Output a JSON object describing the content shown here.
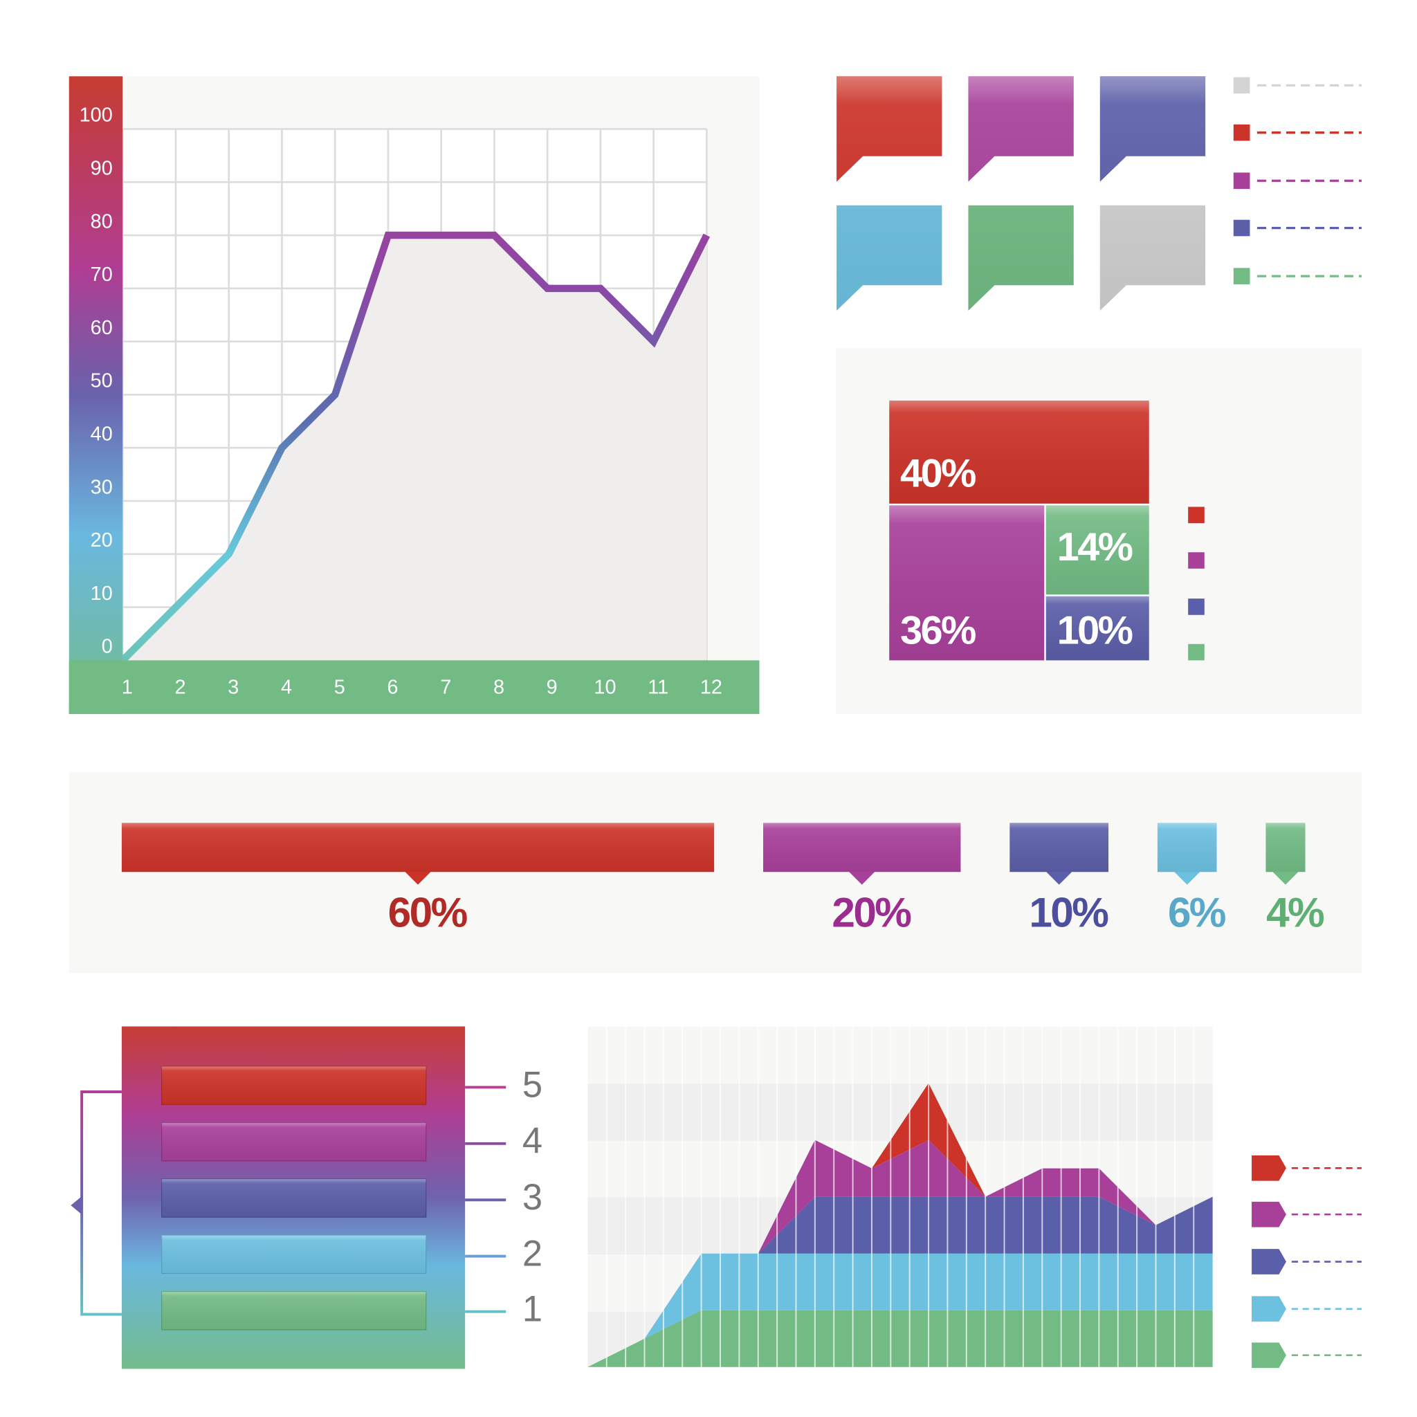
{
  "chart_data": [
    {
      "type": "line",
      "x": [
        1,
        2,
        3,
        4,
        5,
        6,
        7,
        8,
        9,
        10,
        11,
        12
      ],
      "values": [
        0,
        10,
        20,
        40,
        50,
        80,
        80,
        80,
        70,
        70,
        60,
        80
      ],
      "xlim": [
        1,
        12
      ],
      "xticks": [
        1,
        2,
        3,
        4,
        5,
        6,
        7,
        8,
        9,
        10,
        11,
        12
      ],
      "ylim": [
        0,
        100
      ],
      "yticks": [
        0,
        10,
        20,
        30,
        40,
        50,
        60,
        70,
        80,
        90,
        100
      ],
      "grid": true,
      "fill": "#efeeed"
    },
    {
      "type": "treemap",
      "values": [
        40,
        36,
        14,
        10
      ],
      "value_labels": [
        "40%",
        "36%",
        "14%",
        "10%"
      ],
      "colors": [
        "#cc3329",
        "#a8409a",
        "#72bb84",
        "#5b5ea8"
      ]
    },
    {
      "type": "bar",
      "values": [
        60,
        20,
        10,
        6,
        4
      ],
      "value_labels": [
        "60%",
        "20%",
        "10%",
        "6%",
        "4%"
      ],
      "colors": [
        "#cc3329",
        "#a8409a",
        "#5b5ea8",
        "#6cc0e0",
        "#72bb84"
      ],
      "label_colors": [
        "#b02a26",
        "#9b2d8e",
        "#4d4f9e",
        "#5aa8c9",
        "#5fae73"
      ]
    },
    {
      "type": "stacked_area",
      "ylim": [
        0,
        6
      ],
      "series": [
        {
          "color": "#72bb84",
          "values": [
            0,
            0.5,
            1,
            1,
            1,
            1,
            1,
            1,
            1,
            1,
            1,
            1
          ]
        },
        {
          "color": "#6cc0e0",
          "values": [
            0,
            0,
            1,
            1,
            1,
            1,
            1,
            1,
            1,
            1,
            1,
            1
          ]
        },
        {
          "color": "#5b5ea8",
          "values": [
            0,
            0,
            0,
            0,
            1,
            1,
            1,
            1,
            1,
            1,
            0.5,
            1
          ]
        },
        {
          "color": "#a8409a",
          "values": [
            0,
            0,
            0,
            0,
            1,
            0.5,
            1,
            0,
            0.5,
            0.5,
            0,
            0
          ]
        },
        {
          "color": "#cc3329",
          "values": [
            0,
            0,
            0,
            0,
            0,
            0,
            1,
            0,
            0,
            0,
            0,
            0
          ]
        }
      ]
    }
  ],
  "levels": {
    "labels": [
      5,
      4,
      3,
      2,
      1
    ]
  }
}
